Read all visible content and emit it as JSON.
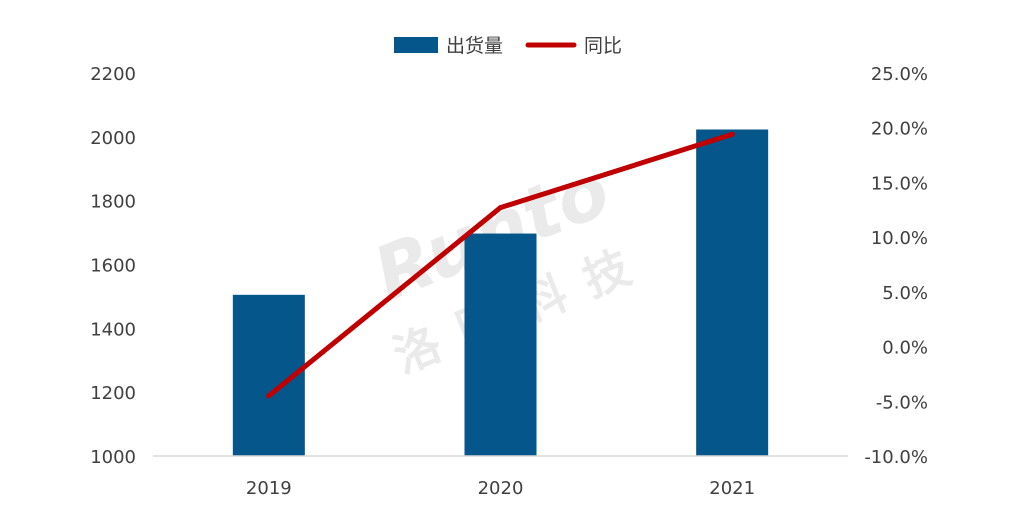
{
  "chart_data": {
    "type": "bar+line",
    "categories": [
      "2019",
      "2020",
      "2021"
    ],
    "series": [
      {
        "name": "出货量",
        "type": "bar",
        "axis": "left",
        "color": "#05568A",
        "values": [
          1505,
          1697,
          2023
        ]
      },
      {
        "name": "同比",
        "type": "line",
        "axis": "right",
        "color": "#C00000",
        "values": [
          -4.5,
          12.7,
          19.4
        ]
      }
    ],
    "y_left": {
      "ylim": [
        1000,
        2200
      ],
      "ticks": [
        1000,
        1200,
        1400,
        1600,
        1800,
        2000,
        2200
      ],
      "tick_labels": [
        "1000",
        "1200",
        "1400",
        "1600",
        "1800",
        "2000",
        "2200"
      ]
    },
    "y_right": {
      "ylim": [
        -10,
        25
      ],
      "ticks": [
        -10,
        -5,
        0,
        5,
        10,
        15,
        20,
        25
      ],
      "tick_labels": [
        "-10.0%",
        "-5.0%",
        "0.0%",
        "5.0%",
        "10.0%",
        "15.0%",
        "20.0%",
        "25.0%"
      ]
    },
    "legend": {
      "position": "top-center",
      "items": [
        "出货量",
        "同比"
      ]
    },
    "grid": false,
    "watermark": {
      "latin": "Runto",
      "chinese": "洛图科技"
    }
  }
}
